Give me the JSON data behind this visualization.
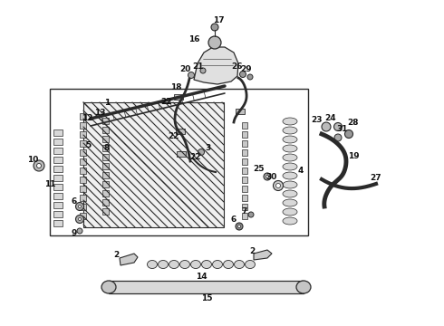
{
  "bg_color": "#ffffff",
  "line_color": "#2a2a2a",
  "label_color": "#111111",
  "fig_width": 4.9,
  "fig_height": 3.6,
  "dpi": 100,
  "xlim": [
    0,
    490
  ],
  "ylim": [
    0,
    360
  ]
}
